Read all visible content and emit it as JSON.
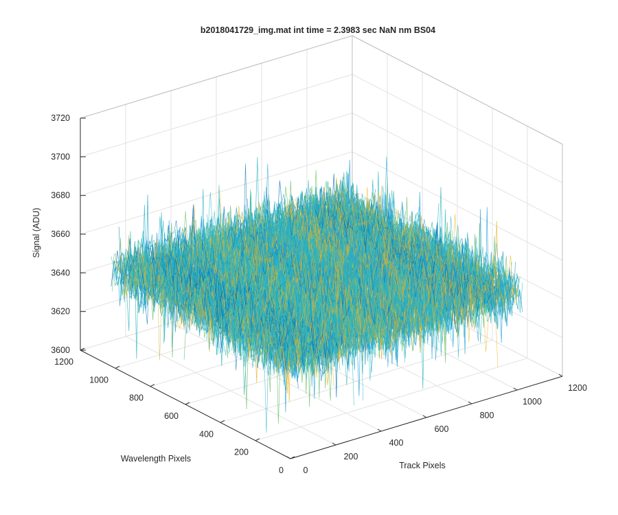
{
  "chart_data": {
    "type": "surface",
    "title": "b2018041729_img.mat int time = 2.3983 sec  NaN nm BS04",
    "xlabel": "Track Pixels",
    "ylabel": "Wavelength Pixels",
    "zlabel": "Signal (ADU)",
    "xlim": [
      0,
      1200
    ],
    "ylim": [
      0,
      1200
    ],
    "zlim": [
      3600,
      3720
    ],
    "xticks": [
      "0",
      "200",
      "400",
      "600",
      "800",
      "1000",
      "1200"
    ],
    "yticks": [
      "0",
      "200",
      "400",
      "600",
      "800",
      "1000",
      "1200"
    ],
    "zticks": [
      "3600",
      "3620",
      "3640",
      "3660",
      "3680",
      "3700",
      "3720"
    ],
    "data_extent": {
      "x": [
        0,
        1024
      ],
      "y": [
        0,
        1024
      ]
    },
    "signal_mean": 3650,
    "signal_range": [
      3605,
      3700
    ],
    "grid": true,
    "colormap": [
      "#0072bd",
      "#21a0d6",
      "#2cb5c0",
      "#6fbf6e",
      "#c9b94f",
      "#edb120"
    ]
  }
}
